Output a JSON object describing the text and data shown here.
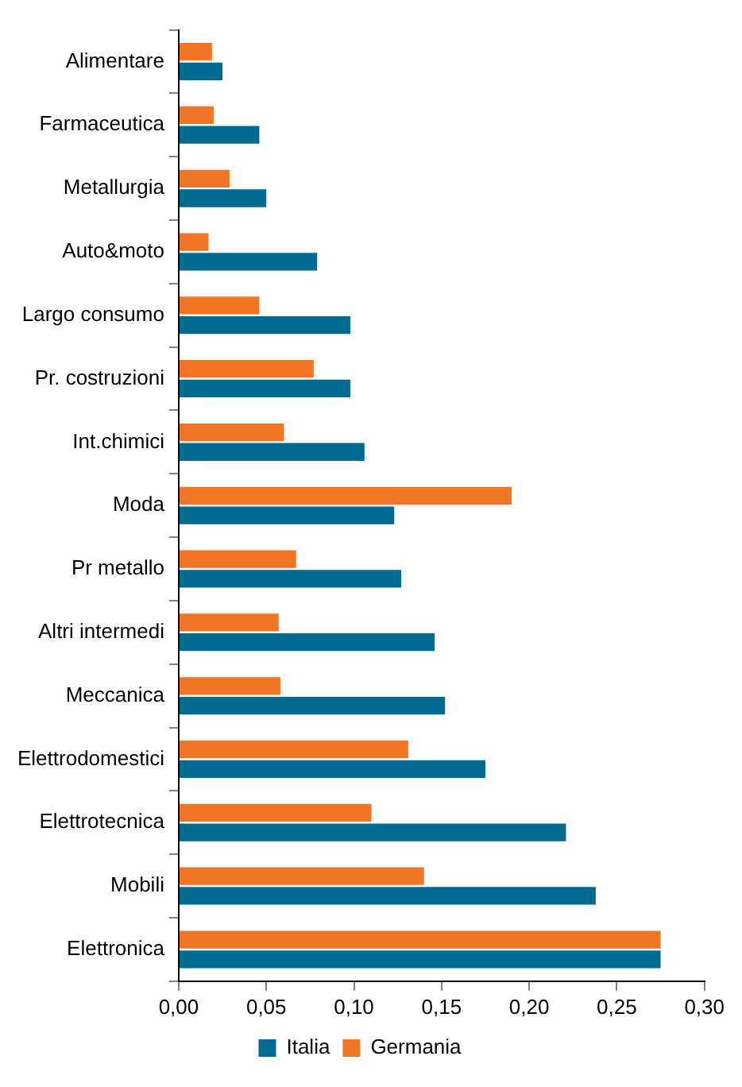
{
  "chart_data": {
    "type": "bar",
    "orientation": "horizontal",
    "categories": [
      "Alimentare",
      "Farmaceutica",
      "Metallurgia",
      "Auto&moto",
      "Largo consumo",
      "Pr. costruzioni",
      "Int.chimici",
      "Moda",
      "Pr metallo",
      "Altri intermedi",
      "Meccanica",
      "Elettrodomestici",
      "Elettrotecnica",
      "Mobili",
      "Elettronica"
    ],
    "series": [
      {
        "name": "Germania",
        "color": "#f07625",
        "values": [
          0.019,
          0.02,
          0.029,
          0.017,
          0.046,
          0.077,
          0.06,
          0.19,
          0.067,
          0.057,
          0.058,
          0.131,
          0.11,
          0.14,
          0.275
        ]
      },
      {
        "name": "Italia",
        "color": "#006a91",
        "values": [
          0.025,
          0.046,
          0.05,
          0.079,
          0.098,
          0.098,
          0.106,
          0.123,
          0.127,
          0.146,
          0.152,
          0.175,
          0.221,
          0.238,
          0.275
        ]
      }
    ],
    "xlim": [
      0,
      0.3
    ],
    "xticks": [
      {
        "value": 0,
        "label": "0,00"
      },
      {
        "value": 0.05,
        "label": "0,05"
      },
      {
        "value": 0.1,
        "label": "0,10"
      },
      {
        "value": 0.15,
        "label": "0,15"
      },
      {
        "value": 0.2,
        "label": "0,20"
      },
      {
        "value": 0.25,
        "label": "0,25"
      },
      {
        "value": 0.3,
        "label": "0,30"
      }
    ],
    "grid": false,
    "legend": "bottom"
  }
}
